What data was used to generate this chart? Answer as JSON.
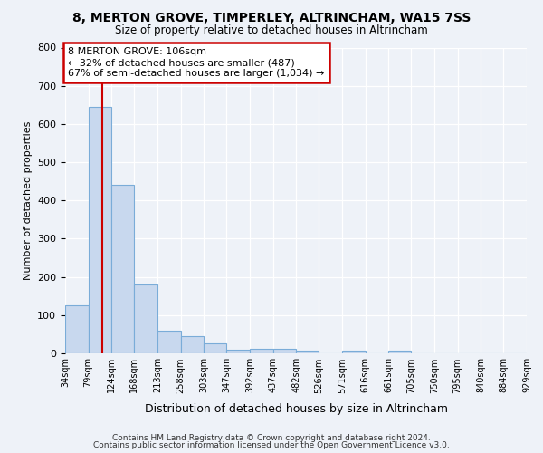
{
  "title": "8, MERTON GROVE, TIMPERLEY, ALTRINCHAM, WA15 7SS",
  "subtitle": "Size of property relative to detached houses in Altrincham",
  "xlabel": "Distribution of detached houses by size in Altrincham",
  "ylabel": "Number of detached properties",
  "bin_labels": [
    "34sqm",
    "79sqm",
    "124sqm",
    "168sqm",
    "213sqm",
    "258sqm",
    "303sqm",
    "347sqm",
    "392sqm",
    "437sqm",
    "482sqm",
    "526sqm",
    "571sqm",
    "616sqm",
    "661sqm",
    "705sqm",
    "750sqm",
    "795sqm",
    "840sqm",
    "884sqm",
    "929sqm"
  ],
  "bar_values": [
    125,
    645,
    440,
    180,
    60,
    45,
    27,
    10,
    13,
    12,
    7,
    0,
    7,
    0,
    8,
    0,
    0,
    0,
    0,
    0
  ],
  "bar_color": "#c8d8ee",
  "bar_edge_color": "#7aacd8",
  "property_line_x": 106,
  "bin_edges": [
    34,
    79,
    124,
    168,
    213,
    258,
    303,
    347,
    392,
    437,
    482,
    526,
    571,
    616,
    661,
    705,
    750,
    795,
    840,
    884,
    929
  ],
  "annotation_line1": "8 MERTON GROVE: 106sqm",
  "annotation_line2": "← 32% of detached houses are smaller (487)",
  "annotation_line3": "67% of semi-detached houses are larger (1,034) →",
  "annotation_box_color": "#ffffff",
  "annotation_box_edge_color": "#cc0000",
  "red_line_color": "#cc0000",
  "ylim": [
    0,
    800
  ],
  "yticks": [
    0,
    100,
    200,
    300,
    400,
    500,
    600,
    700,
    800
  ],
  "footer_line1": "Contains HM Land Registry data © Crown copyright and database right 2024.",
  "footer_line2": "Contains public sector information licensed under the Open Government Licence v3.0.",
  "background_color": "#eef2f8",
  "plot_bg_color": "#eef2f8",
  "grid_color": "#ffffff"
}
